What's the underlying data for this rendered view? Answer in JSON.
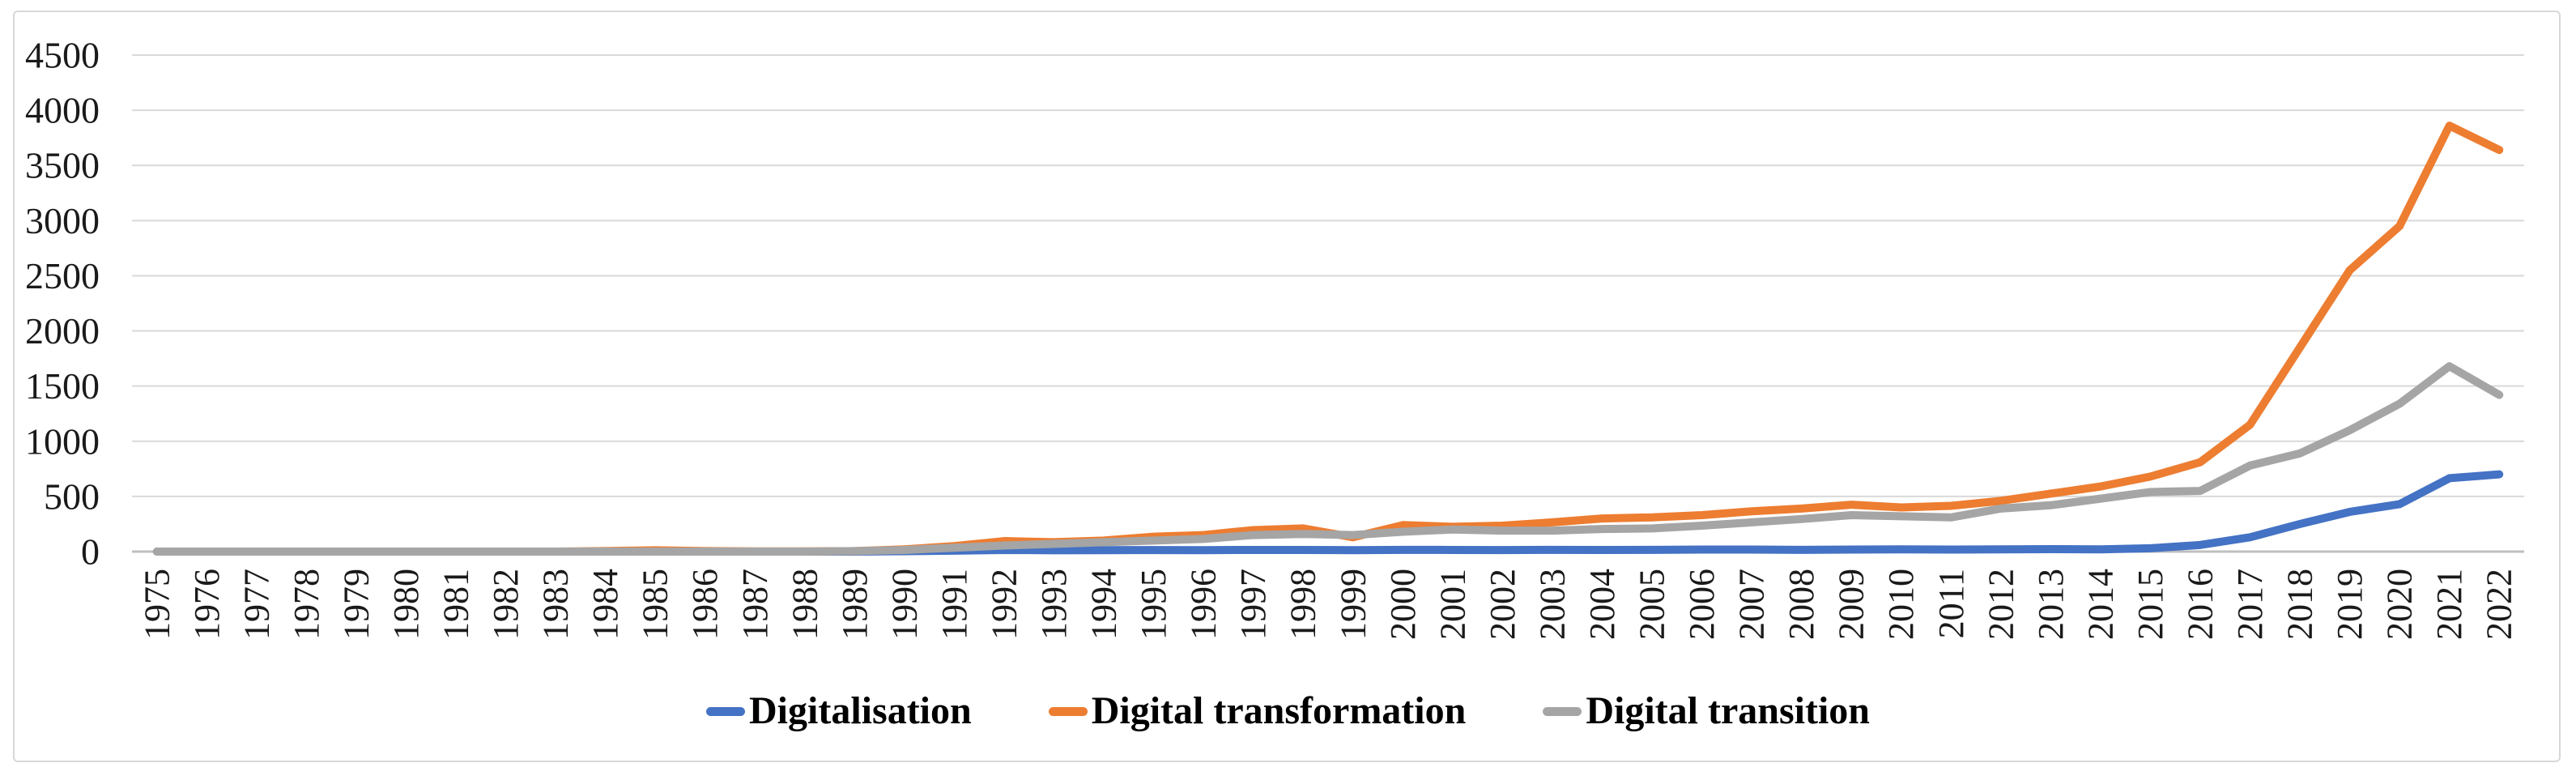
{
  "figure": {
    "background_color": "#ffffff",
    "border_color": "#d8d8d8"
  },
  "chart_data": {
    "type": "line",
    "title": "",
    "xlabel": "",
    "ylabel": "",
    "grid": "horizontal",
    "gridline_color": "#d9d9d9",
    "axis_line_color": "#bfbfbf",
    "text_color": "#1a1a1a",
    "legend_position": "bottom",
    "ylim": [
      0,
      4500
    ],
    "ytick_step": 500,
    "yticks": [
      0,
      500,
      1000,
      1500,
      2000,
      2500,
      3000,
      3500,
      4000,
      4500
    ],
    "x": [
      1975,
      1976,
      1977,
      1978,
      1979,
      1980,
      1981,
      1982,
      1983,
      1984,
      1985,
      1986,
      1987,
      1988,
      1989,
      1990,
      1991,
      1992,
      1993,
      1994,
      1995,
      1996,
      1997,
      1998,
      1999,
      2000,
      2001,
      2002,
      2003,
      2004,
      2005,
      2006,
      2007,
      2008,
      2009,
      2010,
      2011,
      2012,
      2013,
      2014,
      2015,
      2016,
      2017,
      2018,
      2019,
      2020,
      2021,
      2022
    ],
    "series": [
      {
        "name": "Digitalisation",
        "color": "#4472c4",
        "values": [
          0,
          0,
          0,
          0,
          0,
          0,
          0,
          0,
          0,
          0,
          0,
          0,
          0,
          0,
          0,
          4,
          8,
          15,
          12,
          13,
          14,
          13,
          15,
          15,
          13,
          16,
          15,
          14,
          16,
          15,
          16,
          18,
          18,
          16,
          18,
          20,
          18,
          20,
          22,
          20,
          30,
          60,
          130,
          250,
          360,
          430,
          665,
          700
        ]
      },
      {
        "name": "Digital transformation",
        "color": "#ed7d31",
        "values": [
          0,
          0,
          0,
          0,
          0,
          0,
          0,
          0,
          0,
          5,
          12,
          5,
          2,
          2,
          5,
          20,
          50,
          95,
          85,
          100,
          135,
          150,
          195,
          210,
          130,
          240,
          225,
          235,
          265,
          300,
          310,
          330,
          365,
          390,
          425,
          400,
          415,
          460,
          525,
          590,
          680,
          810,
          1150,
          1850,
          2550,
          2950,
          3860,
          3640
        ]
      },
      {
        "name": "Digital transition",
        "color": "#a5a5a5",
        "values": [
          0,
          0,
          0,
          0,
          0,
          0,
          0,
          0,
          0,
          0,
          0,
          0,
          0,
          0,
          5,
          15,
          35,
          55,
          70,
          85,
          100,
          115,
          150,
          160,
          150,
          180,
          200,
          190,
          190,
          205,
          210,
          235,
          265,
          295,
          330,
          320,
          310,
          390,
          420,
          480,
          540,
          550,
          780,
          890,
          1100,
          1340,
          1680,
          1420
        ]
      }
    ]
  }
}
